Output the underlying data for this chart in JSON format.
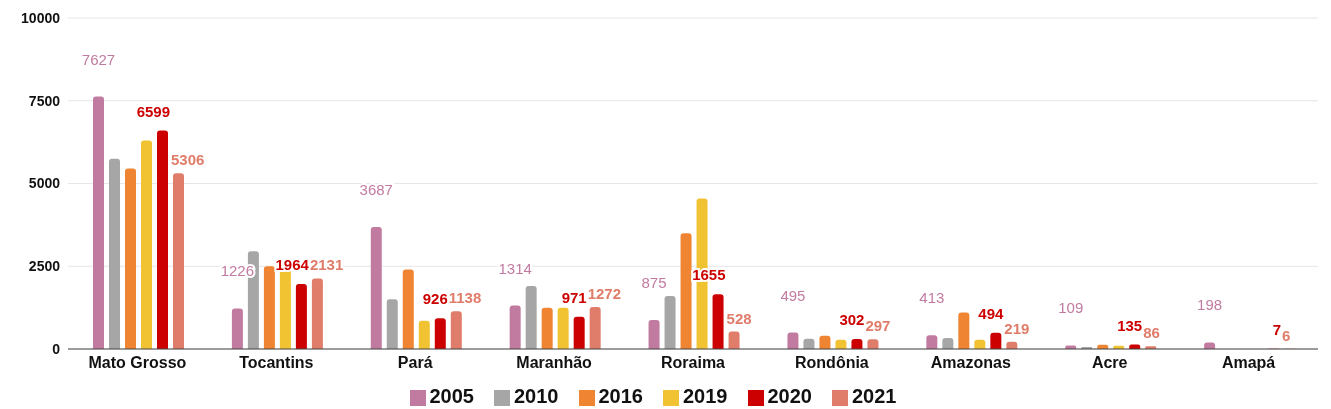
{
  "chart_data": {
    "type": "bar",
    "categories": [
      "Mato Grosso",
      "Tocantins",
      "Pará",
      "Maranhão",
      "Roraima",
      "Rondônia",
      "Amazonas",
      "Acre",
      "Amapá"
    ],
    "series": [
      {
        "name": "2005",
        "color": "#c27ba0",
        "values": [
          7627,
          1226,
          3687,
          1314,
          875,
          495,
          413,
          109,
          198
        ],
        "value_labels": [
          "7627",
          "1226",
          "3687",
          "1314",
          "875",
          "495",
          "413",
          "109",
          "198"
        ]
      },
      {
        "name": "2010",
        "color": "#a6a6a6",
        "values": [
          5750,
          2950,
          1500,
          1900,
          1600,
          310,
          330,
          60,
          null
        ]
      },
      {
        "name": "2016",
        "color": "#ef8432",
        "values": [
          5450,
          2500,
          2400,
          1250,
          3500,
          400,
          1100,
          130,
          null
        ]
      },
      {
        "name": "2019",
        "color": "#f1c232",
        "values": [
          6300,
          2400,
          850,
          1250,
          4550,
          280,
          280,
          100,
          null
        ]
      },
      {
        "name": "2020",
        "color": "#cc0000",
        "values": [
          6599,
          1964,
          926,
          971,
          1655,
          302,
          494,
          135,
          7
        ],
        "value_labels": [
          "6599",
          "1964",
          "926",
          "971",
          "1655",
          "302",
          "494",
          "135",
          "7"
        ]
      },
      {
        "name": "2021",
        "color": "#e07c6a",
        "values": [
          5306,
          2131,
          1138,
          1272,
          528,
          297,
          219,
          86,
          6
        ],
        "value_labels": [
          "5306",
          "2131",
          "1138",
          "1272",
          "528",
          "297",
          "219",
          "86",
          "6"
        ]
      }
    ],
    "ylim": [
      0,
      10000
    ],
    "yticks": [
      0,
      2500,
      5000,
      7500,
      10000
    ],
    "grid": "y",
    "legend": "bottom"
  }
}
